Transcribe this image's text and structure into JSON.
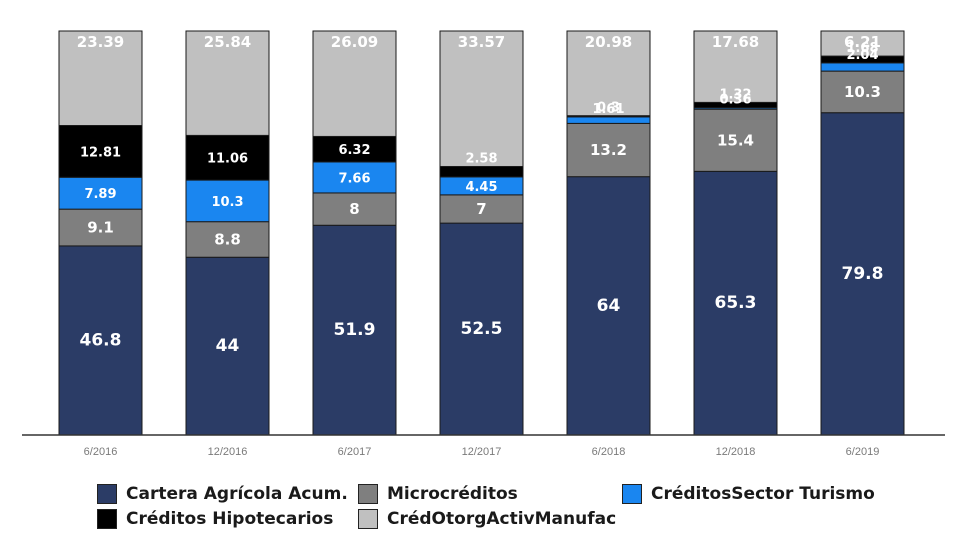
{
  "chart_data": {
    "type": "stacked-bar",
    "categories": [
      "6/2016",
      "12/2016",
      "6/2017",
      "12/2017",
      "6/2018",
      "12/2018",
      "6/2019"
    ],
    "series": [
      {
        "name": "Cartera Agrícola Acum.",
        "color": "#2b3c66",
        "values": [
          46.8,
          44,
          51.9,
          52.5,
          64,
          65.3,
          79.8
        ],
        "labels": [
          "46.8",
          "44",
          "51.9",
          "52.5",
          "64",
          "65.3",
          "79.8"
        ]
      },
      {
        "name": "Microcréditos",
        "color": "#7f7f7f",
        "values": [
          9.1,
          8.8,
          8,
          7,
          13.2,
          15.4,
          10.3
        ],
        "labels": [
          "9.1",
          "8.8",
          "8",
          "7",
          "13.2",
          "15.4",
          "10.3"
        ]
      },
      {
        "name": "CréditosSector Turismo",
        "color": "#1a86f0",
        "values": [
          7.89,
          10.3,
          7.66,
          4.45,
          1.61,
          0.36,
          2.04
        ],
        "labels": [
          "7.89",
          "10.3",
          "7.66",
          "4.45",
          "1.61",
          "0.36",
          "2.04"
        ]
      },
      {
        "name": "Créditos Hipotecarios",
        "color": "#000000",
        "values": [
          12.81,
          11.06,
          6.32,
          2.58,
          0.3,
          1.32,
          1.68
        ],
        "labels": [
          "12.81",
          "11.06",
          "6.32",
          "2.58",
          "0.3",
          "1.32",
          "1.68"
        ]
      },
      {
        "name": "CrédOtorgActivManufac",
        "color": "#c0c0c0",
        "values": [
          23.39,
          25.84,
          26.09,
          33.57,
          20.98,
          17.68,
          6.21
        ],
        "labels": [
          "23.39",
          "25.84",
          "26.09",
          "33.57",
          "20.98",
          "17.68",
          "6.21"
        ]
      }
    ],
    "ylim": [
      0,
      100
    ],
    "grid": false,
    "legend_position": "bottom"
  }
}
